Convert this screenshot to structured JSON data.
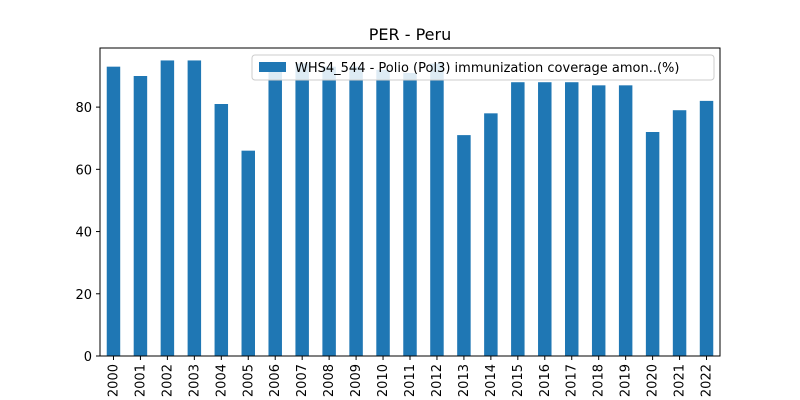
{
  "chart_data": {
    "type": "bar",
    "title": "PER - Peru",
    "xlabel": "",
    "ylabel": "",
    "ylim": [
      0,
      99
    ],
    "yticks": [
      0,
      20,
      40,
      60,
      80
    ],
    "grid": false,
    "legend_position": "top-right",
    "categories": [
      "2000",
      "2001",
      "2002",
      "2003",
      "2004",
      "2005",
      "2006",
      "2007",
      "2008",
      "2009",
      "2010",
      "2011",
      "2012",
      "2013",
      "2014",
      "2015",
      "2016",
      "2017",
      "2018",
      "2019",
      "2020",
      "2021",
      "2022"
    ],
    "series": [
      {
        "name": "WHS4_544 - Polio (Pol3) immunization coverage amon..(%)",
        "color": "#1f77b4",
        "values": [
          93,
          90,
          95,
          95,
          81,
          66,
          94,
          94,
          93,
          93,
          92,
          91,
          94,
          71,
          78,
          88,
          88,
          88,
          87,
          87,
          72,
          79,
          82
        ]
      }
    ]
  }
}
